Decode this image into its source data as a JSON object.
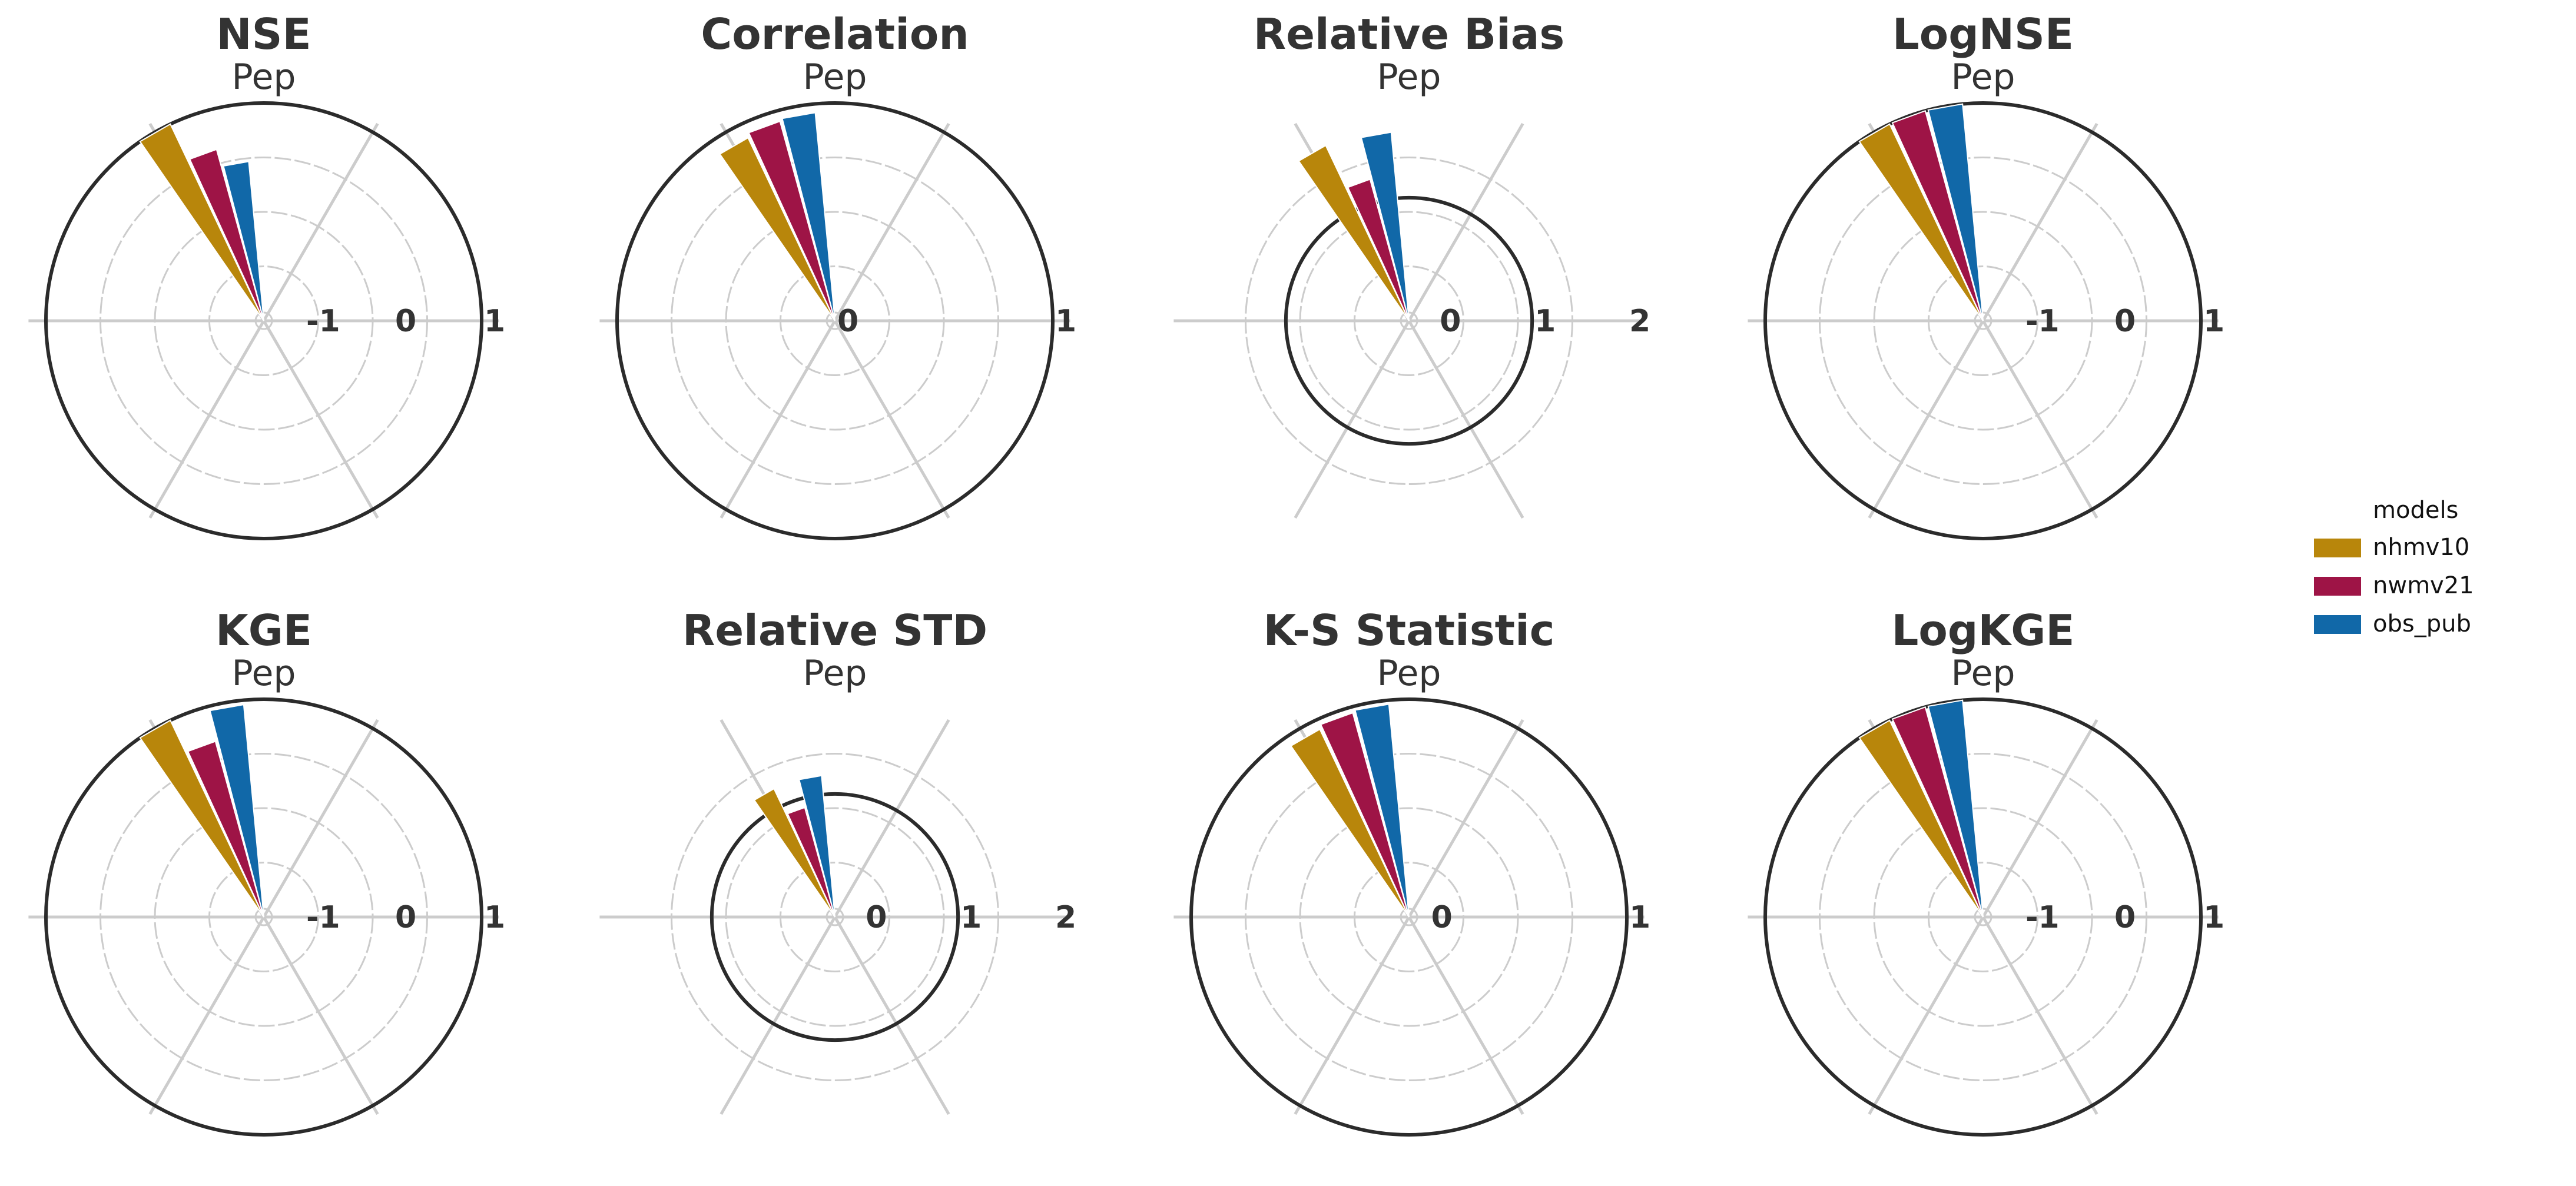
{
  "figure": {
    "subtitle": "Pep"
  },
  "legend": {
    "title": "models",
    "entries": [
      {
        "name": "nhmv10",
        "color": "#B8860B"
      },
      {
        "name": "nwmv21",
        "color": "#9E1446"
      },
      {
        "name": "obs_pub",
        "color": "#1168A8"
      }
    ]
  },
  "chart_data": [
    {
      "type": "polar-bar",
      "title": "NSE",
      "subtitle": "Pep",
      "rlim": [
        -1.45,
        1
      ],
      "ticks": [
        -1,
        0,
        1
      ],
      "tick_labels": [
        "-1",
        "0",
        "1"
      ],
      "reference": 1,
      "series": [
        {
          "name": "nhmv10",
          "value": 1.0
        },
        {
          "name": "nwmv21",
          "value": 0.55
        },
        {
          "name": "obs_pub",
          "value": 0.35
        }
      ]
    },
    {
      "type": "polar-bar",
      "title": "Correlation",
      "subtitle": "Pep",
      "rlim": [
        0,
        1
      ],
      "ticks": [
        0,
        1
      ],
      "tick_labels": [
        "0",
        "1"
      ],
      "reference": 1,
      "series": [
        {
          "name": "nhmv10",
          "value": 0.93
        },
        {
          "name": "nwmv21",
          "value": 0.95
        },
        {
          "name": "obs_pub",
          "value": 0.96
        }
      ]
    },
    {
      "type": "polar-bar",
      "title": "Relative Bias",
      "subtitle": "Pep",
      "rlim": [
        -0.3,
        2
      ],
      "ticks": [
        0,
        1,
        2
      ],
      "tick_labels": [
        "0",
        "1",
        "2"
      ],
      "reference": 1,
      "series": [
        {
          "name": "nhmv10",
          "value": 1.75
        },
        {
          "name": "nwmv21",
          "value": 1.25
        },
        {
          "name": "obs_pub",
          "value": 1.7
        }
      ]
    },
    {
      "type": "polar-bar",
      "title": "LogNSE",
      "subtitle": "Pep",
      "rlim": [
        -1.45,
        1
      ],
      "ticks": [
        -1,
        0,
        1
      ],
      "tick_labels": [
        "-1",
        "0",
        "1"
      ],
      "reference": 1,
      "series": [
        {
          "name": "nhmv10",
          "value": 1.0
        },
        {
          "name": "nwmv21",
          "value": 1.0
        },
        {
          "name": "obs_pub",
          "value": 1.0
        }
      ]
    },
    {
      "type": "polar-bar",
      "title": "KGE",
      "subtitle": "Pep",
      "rlim": [
        -1.45,
        1
      ],
      "ticks": [
        -1,
        0,
        1
      ],
      "tick_labels": [
        "-1",
        "0",
        "1"
      ],
      "reference": 1,
      "series": [
        {
          "name": "nhmv10",
          "value": 1.0
        },
        {
          "name": "nwmv21",
          "value": 0.6
        },
        {
          "name": "obs_pub",
          "value": 0.95
        }
      ]
    },
    {
      "type": "polar-bar",
      "title": "Relative STD",
      "subtitle": "Pep",
      "rlim": [
        -0.3,
        2
      ],
      "ticks": [
        0,
        1,
        2
      ],
      "tick_labels": [
        "0",
        "1",
        "2"
      ],
      "reference": 1,
      "series": [
        {
          "name": "nhmv10",
          "value": 1.2
        },
        {
          "name": "nwmv21",
          "value": 0.9
        },
        {
          "name": "obs_pub",
          "value": 1.2
        }
      ]
    },
    {
      "type": "polar-bar",
      "title": "K-S Statistic",
      "subtitle": "Pep",
      "rlim": [
        -0.1,
        1
      ],
      "ticks": [
        0,
        1
      ],
      "tick_labels": [
        "0",
        "1"
      ],
      "reference": 1,
      "series": [
        {
          "name": "nhmv10",
          "value": 0.95
        },
        {
          "name": "nwmv21",
          "value": 0.97
        },
        {
          "name": "obs_pub",
          "value": 0.98
        }
      ]
    },
    {
      "type": "polar-bar",
      "title": "LogKGE",
      "subtitle": "Pep",
      "rlim": [
        -1.45,
        1
      ],
      "ticks": [
        -1,
        0,
        1
      ],
      "tick_labels": [
        "-1",
        "0",
        "1"
      ],
      "reference": 1,
      "series": [
        {
          "name": "nhmv10",
          "value": 1.0
        },
        {
          "name": "nwmv21",
          "value": 1.0
        },
        {
          "name": "obs_pub",
          "value": 1.0
        }
      ]
    }
  ]
}
